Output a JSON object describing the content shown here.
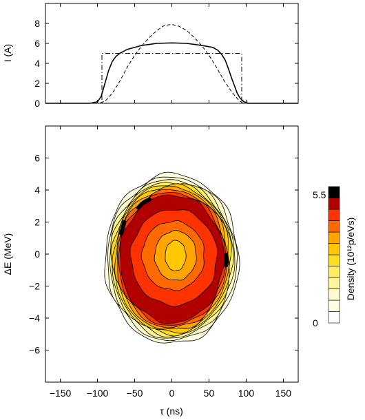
{
  "chart_data": [
    {
      "type": "line",
      "ylabel": "I (A)",
      "xlim": [
        -170,
        170
      ],
      "ylim": [
        0,
        10
      ],
      "x_ticks": [
        -150,
        -100,
        -50,
        0,
        50,
        100,
        150
      ],
      "y_ticks": [
        0,
        2,
        4,
        6,
        8
      ],
      "grid": false,
      "legend": "none",
      "series": [
        {
          "style": "solid",
          "points": [
            [
              -170,
              0
            ],
            [
              -110,
              0
            ],
            [
              -100,
              0.15
            ],
            [
              -95,
              0.7
            ],
            [
              -90,
              2.0
            ],
            [
              -85,
              3.3
            ],
            [
              -80,
              4.2
            ],
            [
              -75,
              4.7
            ],
            [
              -70,
              5.0
            ],
            [
              -60,
              5.4
            ],
            [
              -40,
              5.8
            ],
            [
              -20,
              6.0
            ],
            [
              0,
              6.05
            ],
            [
              20,
              6.0
            ],
            [
              40,
              5.8
            ],
            [
              55,
              5.6
            ],
            [
              62,
              5.3
            ],
            [
              67,
              4.9
            ],
            [
              72,
              4.3
            ],
            [
              76,
              3.5
            ],
            [
              80,
              2.6
            ],
            [
              84,
              1.8
            ],
            [
              88,
              1.0
            ],
            [
              92,
              0.5
            ],
            [
              97,
              0.15
            ],
            [
              103,
              0
            ],
            [
              170,
              0
            ]
          ]
        },
        {
          "style": "dashed",
          "points": [
            [
              -170,
              0
            ],
            [
              -100,
              0
            ],
            [
              -90,
              0.2
            ],
            [
              -80,
              1.0
            ],
            [
              -70,
              2.2
            ],
            [
              -60,
              3.6
            ],
            [
              -50,
              4.8
            ],
            [
              -40,
              5.8
            ],
            [
              -30,
              6.6
            ],
            [
              -20,
              7.3
            ],
            [
              -10,
              7.8
            ],
            [
              0,
              7.9
            ],
            [
              10,
              7.7
            ],
            [
              20,
              7.3
            ],
            [
              30,
              6.6
            ],
            [
              40,
              5.8
            ],
            [
              50,
              4.8
            ],
            [
              60,
              3.6
            ],
            [
              70,
              2.3
            ],
            [
              80,
              1.2
            ],
            [
              90,
              0.3
            ],
            [
              95,
              0.05
            ],
            [
              100,
              0
            ],
            [
              170,
              0
            ]
          ]
        },
        {
          "style": "dash-dot",
          "points": [
            [
              -170,
              0
            ],
            [
              -94,
              0
            ],
            [
              -94,
              5.0
            ],
            [
              94,
              5.0
            ],
            [
              94,
              0
            ],
            [
              170,
              0
            ]
          ]
        }
      ]
    },
    {
      "type": "heatmap",
      "xlabel": "τ (ns)",
      "ylabel": "ΔE (MeV)",
      "xlim": [
        -170,
        170
      ],
      "ylim": [
        -8,
        8
      ],
      "x_ticks": [
        -150,
        -100,
        -50,
        0,
        50,
        100,
        150
      ],
      "y_ticks": [
        -6,
        -4,
        -2,
        0,
        2,
        4,
        6
      ],
      "grid": false,
      "contours": [
        {
          "level_index": 0,
          "rx": 90,
          "ry": 5.3,
          "cx": 0,
          "cy": -0.3,
          "color": "#ffffe0"
        },
        {
          "level_index": 1,
          "rx": 87,
          "ry": 5.1,
          "cx": 0,
          "cy": -0.3,
          "color": "#fffacd"
        },
        {
          "level_index": 2,
          "rx": 84,
          "ry": 4.95,
          "cx": 0,
          "cy": -0.3,
          "color": "#fff59a"
        },
        {
          "level_index": 3,
          "rx": 82,
          "ry": 4.8,
          "cx": 0,
          "cy": -0.3,
          "color": "#ffef5e"
        },
        {
          "level_index": 4,
          "rx": 80,
          "ry": 4.7,
          "cx": 0,
          "cy": -0.3,
          "color": "#ffdd1f"
        },
        {
          "level_index": 5,
          "rx": 78,
          "ry": 4.6,
          "cx": 0,
          "cy": -0.3,
          "color": "#ffc800"
        },
        {
          "level_index": 6,
          "rx": 76,
          "ry": 4.45,
          "cx": 0,
          "cy": -0.3,
          "color": "#ffa500"
        },
        {
          "level_index": 7,
          "rx": 74,
          "ry": 4.3,
          "cx": 0,
          "cy": -0.3,
          "color": "#ff6a00"
        },
        {
          "level_index": 8,
          "rx": 72,
          "ry": 4.15,
          "cx": 0,
          "cy": -0.3,
          "color": "#ff3300"
        },
        {
          "level_index": 9,
          "rx": 70,
          "ry": 4.0,
          "cx": 0,
          "cy": -0.3,
          "color": "#b00000"
        },
        {
          "level_index": 10,
          "rx": 58,
          "ry": 3.0,
          "cx": 3,
          "cy": -0.2,
          "color": "#ff3300"
        },
        {
          "level_index": 11,
          "rx": 42,
          "ry": 2.15,
          "cx": 2,
          "cy": -0.1,
          "color": "#ff6a00"
        },
        {
          "level_index": 12,
          "rx": 28,
          "ry": 1.55,
          "cx": 5,
          "cy": -0.1,
          "color": "#ffa500"
        },
        {
          "level_index": 13,
          "rx": 14,
          "ry": 0.95,
          "cx": 5,
          "cy": -0.1,
          "color": "#ffc800"
        }
      ],
      "peaks": [
        {
          "points": [
            [
              -45,
              2.9
            ],
            [
              -40,
              3.15
            ],
            [
              -35,
              3.3
            ],
            [
              -30,
              3.4
            ]
          ]
        },
        {
          "points": [
            [
              -68,
              1.3
            ],
            [
              -66,
              1.65
            ],
            [
              -64,
              2.0
            ]
          ]
        },
        {
          "points": [
            [
              73,
              -0.7
            ],
            [
              74,
              -0.35
            ],
            [
              73,
              -0.05
            ]
          ]
        }
      ],
      "colorbar": {
        "label": "Density (10¹²p/eVs)",
        "max_label": "5.5",
        "min_label": "0",
        "levels": [
          "#ffffff",
          "#ffffe0",
          "#fffacd",
          "#fff59a",
          "#ffef5e",
          "#ffdd1f",
          "#ffc800",
          "#ffa500",
          "#ff6a00",
          "#ff3300",
          "#b00000",
          "#000000"
        ]
      }
    }
  ]
}
